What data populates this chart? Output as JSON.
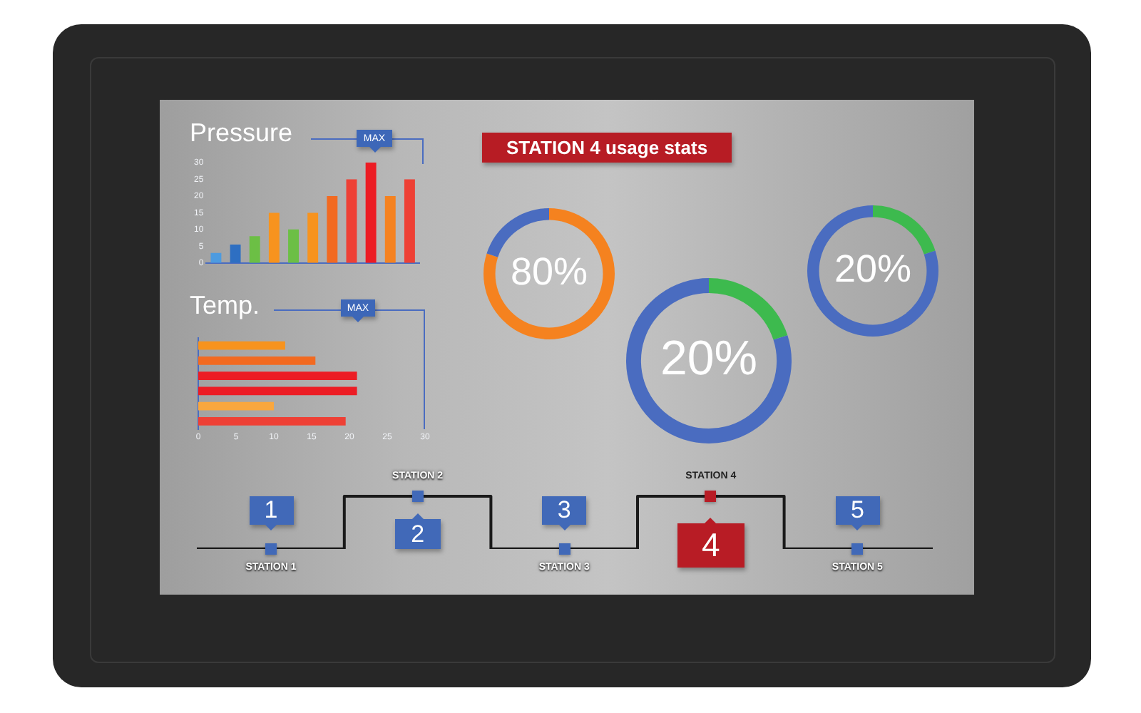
{
  "chart_data": [
    {
      "type": "bar",
      "title": "Pressure",
      "categories": [
        null,
        null,
        null,
        null,
        null,
        null,
        null,
        null,
        null,
        null,
        null
      ],
      "values": [
        3,
        5.5,
        8,
        15,
        10,
        15,
        20,
        25,
        30,
        20,
        25
      ],
      "colors": [
        "#4d9be0",
        "#2e6fc2",
        "#6cbf45",
        "#f7931e",
        "#6cbf45",
        "#f7931e",
        "#f26a21",
        "#ee4035",
        "#ec1c24",
        "#f58220",
        "#ee4035"
      ],
      "ylim": [
        0,
        30
      ],
      "yticks": [
        0,
        5,
        10,
        15,
        20,
        25,
        30
      ],
      "tick_labels": "y",
      "annotations": [
        "MAX"
      ]
    },
    {
      "type": "bar",
      "title": "Temp.",
      "orientation": "horizontal",
      "categories": [
        null,
        null,
        null,
        null,
        null,
        null
      ],
      "values": [
        11.5,
        15.5,
        21,
        21,
        10,
        19.5
      ],
      "colors": [
        "#f7931e",
        "#f26a21",
        "#ec1c24",
        "#ec1c24",
        "#f9a73e",
        "#ee4035"
      ],
      "xlim": [
        0,
        30
      ],
      "xticks": [
        0,
        5,
        10,
        15,
        20,
        25,
        30
      ],
      "tick_labels": "x",
      "annotations": [
        "MAX"
      ]
    },
    {
      "type": "donut",
      "title": "STATION 4 usage stats",
      "categories": [
        null,
        null
      ],
      "values": [
        80,
        20
      ],
      "colors": [
        "#f5821f",
        "#4a6cc0"
      ],
      "value_labels": [
        "80%",
        null
      ]
    },
    {
      "type": "donut",
      "categories": [
        null,
        null
      ],
      "values": [
        20,
        80
      ],
      "colors": [
        "#3dba4e",
        "#4a6cc0"
      ],
      "value_labels": [
        "20%",
        null
      ]
    },
    {
      "type": "donut",
      "categories": [
        null,
        null
      ],
      "values": [
        20,
        80
      ],
      "colors": [
        "#3dba4e",
        "#4a6cc0"
      ],
      "value_labels": [
        "20%",
        null
      ]
    },
    {
      "type": "other",
      "categories": [
        "STATION 1",
        "STATION 2",
        "STATION 3",
        "STATION 4",
        "STATION 5"
      ],
      "colors": [
        "#4169b8",
        "#4169b8",
        "#4169b8",
        "#b81c25",
        "#4169b8"
      ],
      "annotations": [
        "1",
        "2",
        "3",
        "4",
        "5"
      ]
    }
  ]
}
